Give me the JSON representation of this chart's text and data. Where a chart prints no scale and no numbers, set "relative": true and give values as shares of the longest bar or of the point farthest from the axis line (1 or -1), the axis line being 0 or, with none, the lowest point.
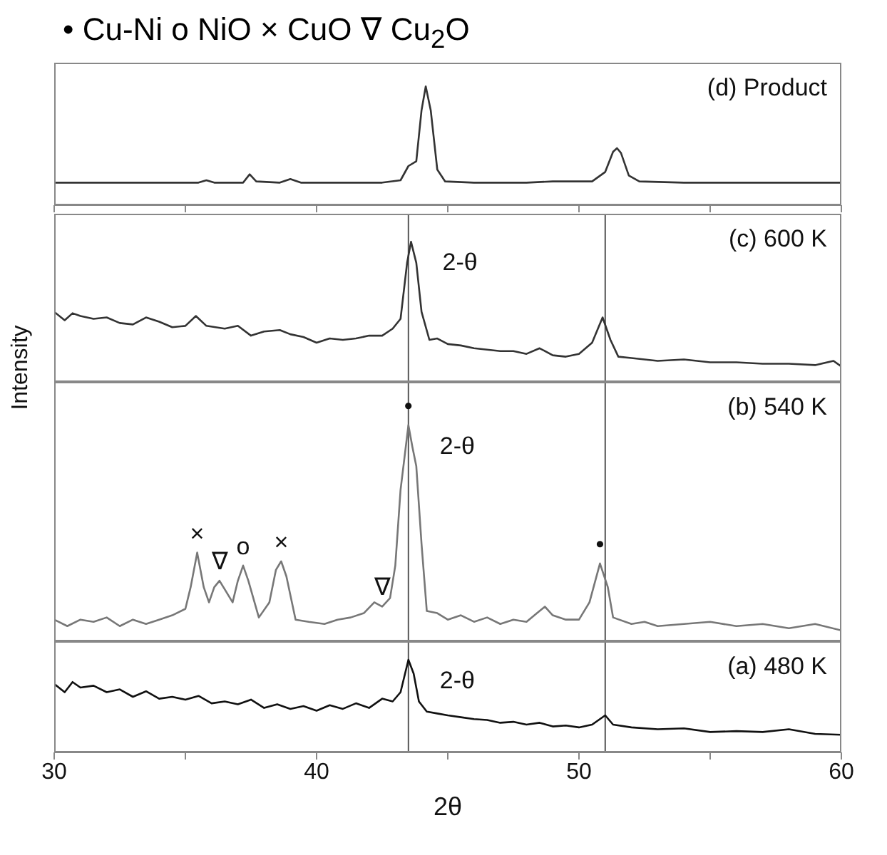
{
  "chart_data": [
    {
      "type": "line",
      "title": "• Cu-Ni  o NiO  × CuO  ∇ Cu$_{2}$O",
      "relative": true,
      "xlim": [
        30,
        60
      ],
      "xticks": [
        30,
        {
          "value": 35,
          "label": null
        },
        40,
        {
          "value": 45,
          "label": null
        },
        50,
        {
          "value": 55,
          "label": null
        },
        60
      ],
      "tick_labels": false,
      "annotations": [
        "(d) Product"
      ],
      "x": [
        30,
        32,
        34,
        35.5,
        35.8,
        36.1,
        37.2,
        37.45,
        37.7,
        38.6,
        39.0,
        39.4,
        42.5,
        43.2,
        43.5,
        43.8,
        44.0,
        44.16,
        44.35,
        44.6,
        44.9,
        46,
        48,
        49,
        50.5,
        51.0,
        51.3,
        51.45,
        51.6,
        51.9,
        52.3,
        54,
        56,
        58,
        60
      ],
      "series": [
        {
          "color": "#333333",
          "values": [
            0.19,
            0.19,
            0.19,
            0.19,
            0.21,
            0.19,
            0.19,
            0.26,
            0.2,
            0.19,
            0.22,
            0.19,
            0.19,
            0.21,
            0.33,
            0.37,
            0.8,
            1.0,
            0.8,
            0.3,
            0.2,
            0.19,
            0.19,
            0.2,
            0.2,
            0.28,
            0.45,
            0.48,
            0.44,
            0.25,
            0.2,
            0.19,
            0.19,
            0.19,
            0.19
          ]
        }
      ]
    },
    {
      "type": "line",
      "relative": true,
      "xlim": [
        30,
        60
      ],
      "tick_labels": false,
      "ylabel": "Intensity",
      "annotations": [
        "(c) 600 K",
        {
          "text": "2-θ",
          "x": 43.6,
          "y": 1.0
        }
      ],
      "ref_lines": [
        {
          "axis": "x",
          "value": 43.5,
          "color": "#555555"
        },
        {
          "axis": "x",
          "value": 51.0,
          "color": "#555555"
        }
      ],
      "x": [
        30,
        30.4,
        30.7,
        31,
        31.5,
        32,
        32.5,
        33,
        33.5,
        34,
        34.5,
        35,
        35.4,
        35.8,
        36.5,
        37,
        37.5,
        38,
        38.6,
        39,
        39.5,
        40,
        40.5,
        41,
        41.5,
        42,
        42.5,
        42.9,
        43.2,
        43.45,
        43.6,
        43.8,
        44.0,
        44.3,
        44.6,
        45,
        45.5,
        46,
        46.5,
        47,
        47.5,
        48,
        48.5,
        49,
        49.5,
        50,
        50.5,
        50.9,
        51.2,
        51.5,
        52,
        53,
        54,
        55,
        56,
        57,
        58,
        59,
        59.7,
        60
      ],
      "series": [
        {
          "color": "#333333",
          "values": [
            0.5,
            0.44,
            0.49,
            0.47,
            0.45,
            0.46,
            0.42,
            0.41,
            0.46,
            0.43,
            0.39,
            0.4,
            0.47,
            0.4,
            0.38,
            0.4,
            0.33,
            0.36,
            0.37,
            0.34,
            0.32,
            0.28,
            0.31,
            0.3,
            0.31,
            0.33,
            0.33,
            0.38,
            0.45,
            0.85,
            1.0,
            0.85,
            0.5,
            0.3,
            0.31,
            0.27,
            0.26,
            0.24,
            0.23,
            0.22,
            0.22,
            0.2,
            0.24,
            0.19,
            0.18,
            0.2,
            0.28,
            0.46,
            0.3,
            0.18,
            0.17,
            0.15,
            0.16,
            0.14,
            0.14,
            0.13,
            0.13,
            0.12,
            0.15,
            0.11
          ]
        }
      ]
    },
    {
      "type": "line",
      "relative": true,
      "xlim": [
        30,
        60
      ],
      "tick_labels": false,
      "annotations": [
        "(b) 540 K",
        {
          "text": "2-θ",
          "x": 43.5,
          "y": 1.0
        },
        {
          "text": "×",
          "x": 35.45,
          "y": 0.41
        },
        {
          "text": "∇",
          "x": 36.3,
          "y": 0.28
        },
        {
          "text": "o",
          "x": 37.2,
          "y": 0.35
        },
        {
          "text": "×",
          "x": 38.65,
          "y": 0.37
        },
        {
          "text": "∇",
          "x": 42.5,
          "y": 0.16
        },
        {
          "text": "•",
          "x": 43.5,
          "y": 1.0
        },
        {
          "text": "•",
          "x": 50.8,
          "y": 0.36
        }
      ],
      "ref_lines": [
        {
          "axis": "x",
          "value": 43.5,
          "color": "#555555"
        },
        {
          "axis": "x",
          "value": 51.0,
          "color": "#555555"
        }
      ],
      "x": [
        30,
        30.5,
        31,
        31.5,
        32,
        32.5,
        33,
        33.5,
        34,
        34.5,
        35,
        35.2,
        35.45,
        35.7,
        35.9,
        36.1,
        36.3,
        36.5,
        36.8,
        37.0,
        37.2,
        37.4,
        37.8,
        38.2,
        38.45,
        38.65,
        38.85,
        39.2,
        39.7,
        40.3,
        40.8,
        41.3,
        41.8,
        42.2,
        42.5,
        42.8,
        43.0,
        43.2,
        43.35,
        43.5,
        43.65,
        43.8,
        44.0,
        44.2,
        44.6,
        45,
        45.5,
        46,
        46.5,
        47,
        47.5,
        48,
        48.4,
        48.7,
        49,
        49.5,
        50,
        50.4,
        50.8,
        51.1,
        51.3,
        52,
        52.5,
        53,
        54,
        55,
        56,
        57,
        58,
        59,
        60
      ],
      "series": [
        {
          "color": "#777777",
          "values": [
            0.1,
            0.07,
            0.1,
            0.09,
            0.11,
            0.07,
            0.1,
            0.08,
            0.1,
            0.12,
            0.15,
            0.25,
            0.41,
            0.25,
            0.18,
            0.25,
            0.28,
            0.24,
            0.18,
            0.28,
            0.35,
            0.28,
            0.11,
            0.18,
            0.33,
            0.37,
            0.3,
            0.1,
            0.09,
            0.08,
            0.1,
            0.11,
            0.13,
            0.18,
            0.16,
            0.2,
            0.35,
            0.7,
            0.85,
            1.0,
            0.9,
            0.81,
            0.45,
            0.14,
            0.13,
            0.1,
            0.12,
            0.09,
            0.11,
            0.08,
            0.1,
            0.09,
            0.13,
            0.16,
            0.12,
            0.1,
            0.1,
            0.18,
            0.36,
            0.25,
            0.11,
            0.08,
            0.09,
            0.07,
            0.08,
            0.09,
            0.07,
            0.08,
            0.06,
            0.08,
            0.05
          ]
        }
      ]
    },
    {
      "type": "line",
      "relative": true,
      "xlim": [
        30,
        60
      ],
      "xticks": [
        30,
        {
          "value": 35,
          "label": null
        },
        40,
        {
          "value": 45,
          "label": null
        },
        50,
        {
          "value": 55,
          "label": null
        },
        60
      ],
      "xlabel": "2θ",
      "annotations": [
        "(a) 480 K",
        {
          "text": "2-θ",
          "x": 43.5,
          "y": 1.0
        }
      ],
      "ref_lines": [
        {
          "axis": "x",
          "value": 43.5,
          "color": "#555555"
        },
        {
          "axis": "x",
          "value": 51.0,
          "color": "#555555"
        }
      ],
      "x": [
        30,
        30.4,
        30.7,
        31,
        31.5,
        32,
        32.5,
        33,
        33.5,
        34,
        34.5,
        35,
        35.5,
        36,
        36.5,
        37,
        37.5,
        38,
        38.5,
        39,
        39.5,
        40,
        40.5,
        41,
        41.5,
        42,
        42.5,
        42.9,
        43.2,
        43.5,
        43.7,
        43.9,
        44.2,
        44.6,
        45,
        45.5,
        46,
        46.5,
        47,
        47.5,
        48,
        48.5,
        49,
        49.5,
        50,
        50.5,
        51.0,
        51.3,
        52,
        53,
        54,
        55,
        56,
        57,
        58,
        59,
        60
      ],
      "series": [
        {
          "color": "#111111",
          "values": [
            0.74,
            0.65,
            0.76,
            0.7,
            0.72,
            0.65,
            0.68,
            0.6,
            0.66,
            0.58,
            0.6,
            0.57,
            0.61,
            0.53,
            0.55,
            0.52,
            0.57,
            0.48,
            0.52,
            0.47,
            0.5,
            0.45,
            0.51,
            0.47,
            0.53,
            0.48,
            0.58,
            0.55,
            0.65,
            1.0,
            0.85,
            0.55,
            0.44,
            0.42,
            0.4,
            0.38,
            0.36,
            0.35,
            0.32,
            0.33,
            0.3,
            0.32,
            0.28,
            0.29,
            0.27,
            0.3,
            0.4,
            0.3,
            0.27,
            0.25,
            0.26,
            0.22,
            0.23,
            0.22,
            0.25,
            0.2,
            0.19
          ]
        }
      ]
    }
  ]
}
